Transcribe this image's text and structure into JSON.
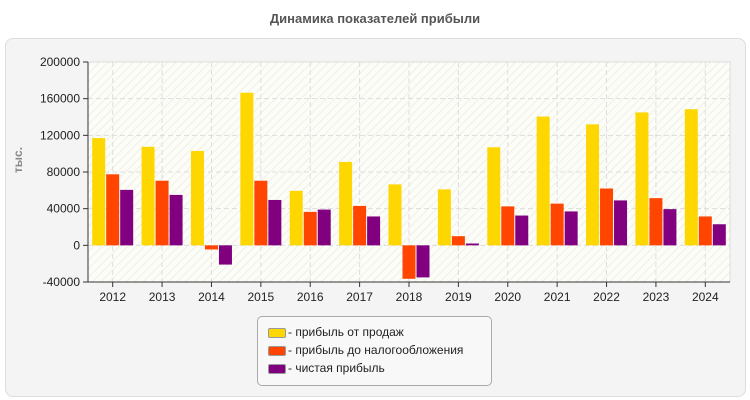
{
  "chart_data": {
    "type": "bar",
    "title": "Динамика показателей прибыли",
    "ylabel": "тыс.",
    "xlabel": "",
    "ylim": [
      -40000,
      200000
    ],
    "yticks": [
      -40000,
      0,
      40000,
      80000,
      120000,
      160000,
      200000
    ],
    "grid": true,
    "legend_position": "bottom",
    "categories": [
      "2012",
      "2013",
      "2014",
      "2015",
      "2016",
      "2017",
      "2018",
      "2019",
      "2020",
      "2021",
      "2022",
      "2023",
      "2024"
    ],
    "series": [
      {
        "name": "- прибыль от продаж",
        "color": "#ffd700",
        "values": [
          117000,
          107500,
          103000,
          166500,
          59500,
          91000,
          66500,
          61000,
          107000,
          140500,
          132000,
          145000,
          148500
        ]
      },
      {
        "name": "- прибыль до налогообложения",
        "color": "#ff4500",
        "values": [
          77500,
          70500,
          -4500,
          70500,
          36500,
          43000,
          -36500,
          10000,
          42500,
          45500,
          62000,
          51500,
          31500
        ]
      },
      {
        "name": "- чистая прибыль",
        "color": "#800080",
        "values": [
          60500,
          55000,
          -21000,
          49500,
          39000,
          31500,
          -35000,
          2000,
          32500,
          37000,
          49000,
          39500,
          23000
        ]
      }
    ]
  }
}
